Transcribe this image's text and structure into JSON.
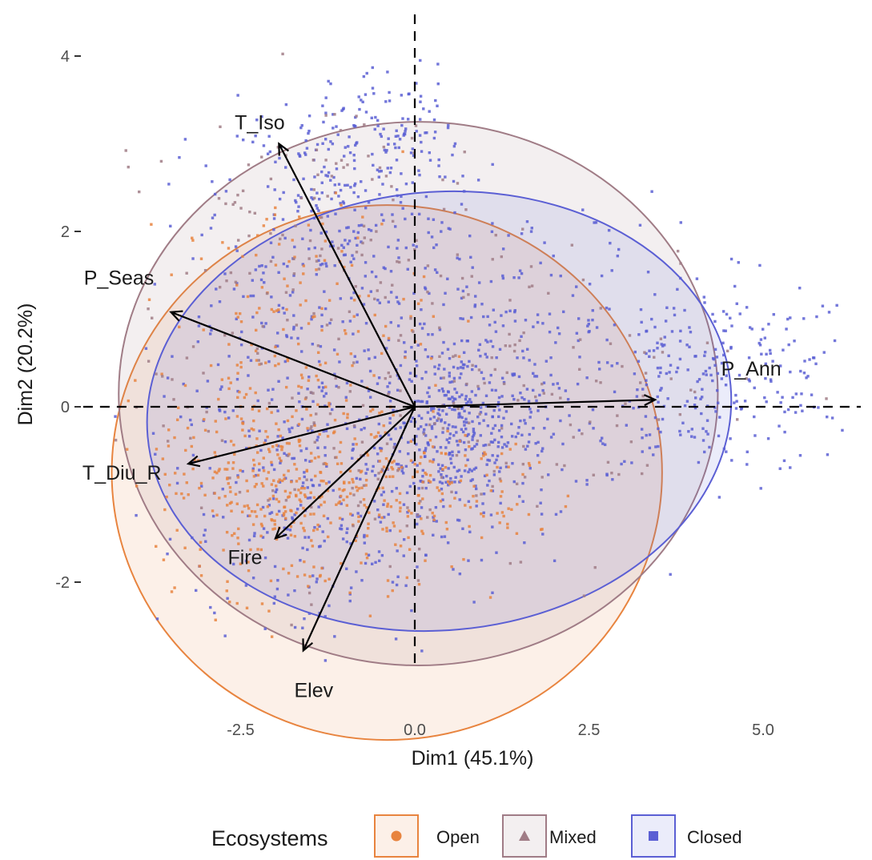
{
  "chart_data": {
    "type": "scatter",
    "subtype": "pca-biplot",
    "xlabel": "Dim1 (45.1%)",
    "ylabel": "Dim2 (20.2%)",
    "xlim": [
      -4.3,
      6.4
    ],
    "ylim": [
      -3.4,
      4.4
    ],
    "x_ticks": [
      {
        "value": -2.5,
        "label": "-2.5"
      },
      {
        "value": 0,
        "label": "0.0"
      },
      {
        "value": 2.5,
        "label": "2.5"
      },
      {
        "value": 5,
        "label": "5.0"
      }
    ],
    "y_ticks": [
      {
        "value": -2,
        "label": "-2"
      },
      {
        "value": 0,
        "label": "0"
      },
      {
        "value": 2,
        "label": "2"
      },
      {
        "value": 4,
        "label": "4"
      }
    ],
    "grid": false,
    "reference_lines": {
      "x": 0,
      "y": 0,
      "style": "dashed"
    },
    "legend": {
      "title": "Ecosystems",
      "position": "bottom",
      "entries": [
        {
          "label": "Open",
          "color": "#e8843f",
          "marker": "circle"
        },
        {
          "label": "Mixed",
          "color": "#a07c86",
          "marker": "triangle"
        },
        {
          "label": "Closed",
          "color": "#5b5fd4",
          "marker": "square"
        }
      ]
    },
    "series": [
      {
        "name": "Open",
        "color": "#e8843f",
        "ellipse": {
          "cx": -0.4,
          "cy": -0.75,
          "rx": 3.95,
          "ry": 3.05,
          "tilt": 0
        }
      },
      {
        "name": "Mixed",
        "color": "#a07c86",
        "ellipse": {
          "cx": 0.05,
          "cy": 0.15,
          "rx": 4.3,
          "ry": 3.1,
          "tilt": 0
        }
      },
      {
        "name": "Closed",
        "color": "#5b5fd4",
        "ellipse": {
          "cx": 0.35,
          "cy": -0.05,
          "rx": 4.2,
          "ry": 2.5,
          "tilt": -5
        }
      }
    ],
    "point_clusters": [
      {
        "series": "Closed",
        "cx": 0.6,
        "cy": -0.3,
        "sx": 0.55,
        "sy": 0.45,
        "n": 320
      },
      {
        "series": "Closed",
        "cx": 4.3,
        "cy": 0.3,
        "sx": 1.1,
        "sy": 0.55,
        "n": 260
      },
      {
        "series": "Closed",
        "cx": -1.2,
        "cy": 2.4,
        "sx": 0.8,
        "sy": 0.6,
        "n": 220
      },
      {
        "series": "Closed",
        "cx": -0.3,
        "cy": 3.2,
        "sx": 0.45,
        "sy": 0.35,
        "n": 80
      },
      {
        "series": "Closed",
        "cx": 1.4,
        "cy": 0.6,
        "sx": 1.2,
        "sy": 0.9,
        "n": 260
      },
      {
        "series": "Closed",
        "cx": -1.6,
        "cy": 0.1,
        "sx": 1.2,
        "sy": 1.1,
        "n": 320
      },
      {
        "series": "Closed",
        "cx": -1.4,
        "cy": -1.5,
        "sx": 0.9,
        "sy": 0.6,
        "n": 140
      },
      {
        "series": "Open",
        "cx": -2.3,
        "cy": -0.8,
        "sx": 0.7,
        "sy": 0.6,
        "n": 200
      },
      {
        "series": "Open",
        "cx": -1.5,
        "cy": -1.0,
        "sx": 0.9,
        "sy": 0.6,
        "n": 150
      },
      {
        "series": "Open",
        "cx": -1.6,
        "cy": 1.0,
        "sx": 0.9,
        "sy": 0.7,
        "n": 150
      },
      {
        "series": "Open",
        "cx": -0.5,
        "cy": -0.9,
        "sx": 0.7,
        "sy": 0.5,
        "n": 110
      },
      {
        "series": "Open",
        "cx": 0.8,
        "cy": -0.9,
        "sx": 0.8,
        "sy": 0.4,
        "n": 60
      },
      {
        "series": "Mixed",
        "cx": -1.0,
        "cy": 0.2,
        "sx": 1.5,
        "sy": 1.2,
        "n": 160
      },
      {
        "series": "Mixed",
        "cx": 2.3,
        "cy": 0.3,
        "sx": 1.4,
        "sy": 0.8,
        "n": 90
      },
      {
        "series": "Mixed",
        "cx": -1.5,
        "cy": 2.3,
        "sx": 0.9,
        "sy": 0.7,
        "n": 80
      }
    ],
    "loadings": [
      {
        "name": "T_Iso",
        "x": -1.95,
        "y": 3.0
      },
      {
        "name": "P_Seas",
        "x": -3.5,
        "y": 1.08
      },
      {
        "name": "P_Ann",
        "x": 3.45,
        "y": 0.08
      },
      {
        "name": "T_Diu_R",
        "x": -3.25,
        "y": -0.65
      },
      {
        "name": "Fire",
        "x": -2.0,
        "y": -1.5
      },
      {
        "name": "Elev",
        "x": -1.6,
        "y": -2.78
      }
    ]
  }
}
